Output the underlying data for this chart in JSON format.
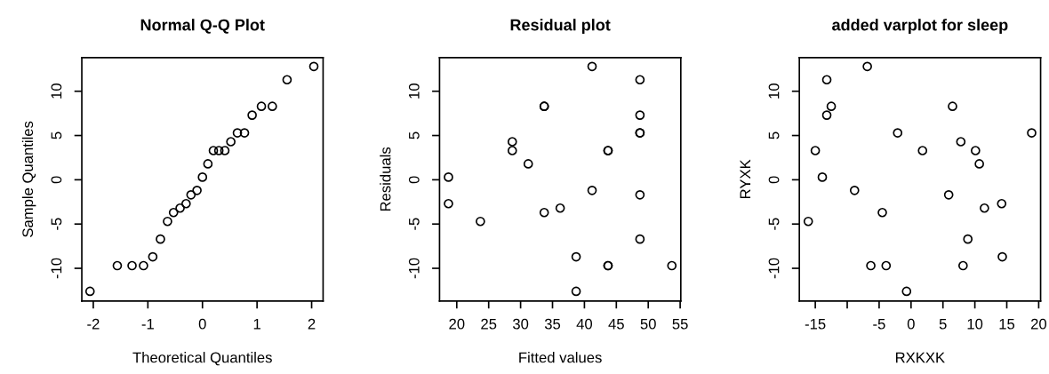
{
  "chart_data": [
    {
      "type": "scatter",
      "title": "Normal Q-Q Plot",
      "xlabel": "Theoretical Quantiles",
      "ylabel": "Sample Quantiles",
      "marker": "circle",
      "grid": false,
      "series": [
        {
          "color": "#000000",
          "x": [
            -2.06,
            -1.56,
            -1.29,
            -1.08,
            -0.91,
            -0.77,
            -0.64,
            -0.53,
            -0.41,
            -0.3,
            -0.21,
            -0.1,
            0.0,
            0.1,
            0.2,
            0.3,
            0.41,
            0.52,
            0.64,
            0.77,
            0.91,
            1.08,
            1.28,
            1.55,
            2.04
          ],
          "values": [
            -12.6,
            -9.7,
            -9.7,
            -9.7,
            -8.7,
            -6.7,
            -4.7,
            -3.7,
            -3.2,
            -2.7,
            -1.7,
            -1.2,
            0.3,
            1.8,
            3.3,
            3.3,
            3.3,
            4.3,
            5.3,
            5.3,
            7.3,
            8.3,
            8.3,
            11.3,
            12.8
          ]
        }
      ],
      "xlim": [
        -2.21,
        2.21
      ],
      "xticks": [
        -2,
        -1,
        0,
        1,
        2
      ],
      "ylim": [
        -13.7,
        13.8
      ],
      "yticks": [
        -10,
        -5,
        0,
        5,
        10
      ]
    },
    {
      "type": "scatter",
      "title": "Residual plot",
      "xlabel": "Fitted values",
      "ylabel": "Residuals",
      "marker": "circle",
      "grid": false,
      "series": [
        {
          "color": "#000000",
          "x": [
            18.7,
            18.7,
            23.7,
            28.7,
            28.7,
            31.2,
            33.7,
            33.7,
            33.7,
            36.2,
            38.7,
            38.7,
            41.2,
            41.2,
            43.7,
            43.7,
            43.7,
            43.7,
            48.7,
            48.7,
            48.7,
            48.7,
            48.7,
            48.7,
            53.7
          ],
          "values": [
            0.3,
            -2.7,
            -4.7,
            4.3,
            3.3,
            1.8,
            8.3,
            8.3,
            -3.7,
            -3.2,
            -8.7,
            -12.6,
            12.8,
            -1.2,
            3.3,
            3.3,
            -9.7,
            -9.7,
            11.3,
            7.3,
            5.3,
            5.3,
            -1.7,
            -6.7,
            -9.7
          ]
        }
      ],
      "xlim": [
        17.3,
        55.1
      ],
      "xticks": [
        20,
        25,
        30,
        35,
        40,
        45,
        50,
        55
      ],
      "ylim": [
        -13.7,
        13.8
      ],
      "yticks": [
        -10,
        -5,
        0,
        5,
        10
      ]
    },
    {
      "type": "scatter",
      "title": "added varplot for sleep",
      "xlabel": "RXKXK",
      "ylabel": "RYXK",
      "marker": "circle",
      "grid": false,
      "series": [
        {
          "color": "#000000",
          "x": [
            -16.1,
            -15.0,
            -13.9,
            -13.2,
            -13.2,
            -12.5,
            -8.85,
            -6.85,
            -6.3,
            -4.5,
            -3.9,
            -2.1,
            -0.7,
            1.8,
            5.9,
            6.5,
            7.8,
            8.15,
            8.9,
            10.1,
            10.7,
            11.5,
            14.2,
            14.3,
            18.9
          ],
          "values": [
            -4.7,
            3.3,
            0.3,
            11.3,
            7.3,
            8.3,
            -1.2,
            12.8,
            -9.7,
            -3.7,
            -9.7,
            5.3,
            -12.6,
            3.3,
            -1.7,
            8.3,
            4.3,
            -9.7,
            -6.7,
            3.3,
            1.8,
            -3.2,
            -2.7,
            -8.7,
            5.3
          ]
        }
      ],
      "xlim": [
        -17.5,
        20.3
      ],
      "xticks": [
        -15,
        {
          "value": -10,
          "label": null
        },
        -5,
        0,
        5,
        10,
        15,
        20
      ],
      "ylim": [
        -13.7,
        13.8
      ],
      "yticks": [
        -10,
        -5,
        0,
        5,
        10
      ]
    }
  ]
}
